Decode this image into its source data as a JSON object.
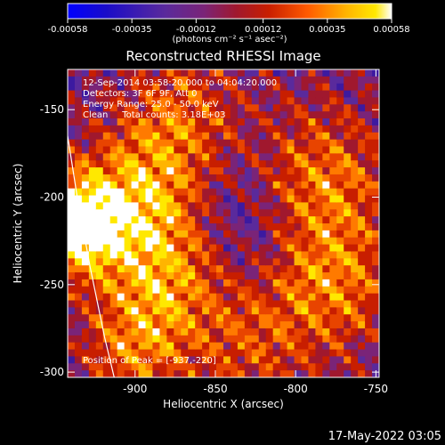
{
  "chart_data": {
    "type": "heatmap",
    "title": "Reconstructed RHESSI Image",
    "xlabel": "Heliocentric X (arcsec)",
    "ylabel": "Heliocentric Y (arcsec)",
    "xlim": [
      -942,
      -748
    ],
    "ylim": [
      -303,
      -127
    ],
    "xticks": [
      "-900",
      "-850",
      "-800",
      "-750"
    ],
    "xtick_values": [
      -900,
      -850,
      -800,
      -750
    ],
    "yticks": [
      "-150",
      "-200",
      "-250",
      "-300"
    ],
    "ytick_values": [
      -150,
      -200,
      -250,
      -300
    ],
    "colorbar": {
      "min": -0.00058,
      "max": 0.00058,
      "tick_labels": [
        "-0.00058",
        "-0.00035",
        "-0.00012",
        "0.00012",
        "0.00035",
        "0.00058"
      ],
      "tick_values": [
        -0.00058,
        -0.00035,
        -0.00012,
        0.00012,
        0.00035,
        0.00058
      ],
      "unit_label": "(photons cm⁻² s⁻¹ asec⁻²)"
    },
    "info_lines": [
      "12-Sep-2014 03:58:20.000 to 04:04:20.000",
      "Detectors: 3F 6F 9F, Att 0",
      "Energy Range: 25.0 - 50.0 keV",
      "Clean     Total counts: 3.18E+03"
    ],
    "peak_label": "Position of Peak = [-937,-220]",
    "peak": [
      -937,
      -220
    ],
    "limb_points": [
      [
        -942,
        -165
      ],
      [
        -936,
        -200
      ],
      [
        -928,
        -240
      ],
      [
        -919,
        -280
      ],
      [
        -913,
        -303
      ]
    ],
    "grid": false,
    "legend": "none"
  },
  "footer": {
    "timestamp": "17-May-2022 03:05"
  },
  "colors": {
    "background": "#000000",
    "text": "#ffffff",
    "colormap": [
      "#0000ff",
      "#1a0cc8",
      "#3c1aa0",
      "#5a2a9c",
      "#7a2478",
      "#a0182e",
      "#c81e00",
      "#e84400",
      "#ff7a00",
      "#ffb400",
      "#ffe800",
      "#ffffff"
    ]
  }
}
